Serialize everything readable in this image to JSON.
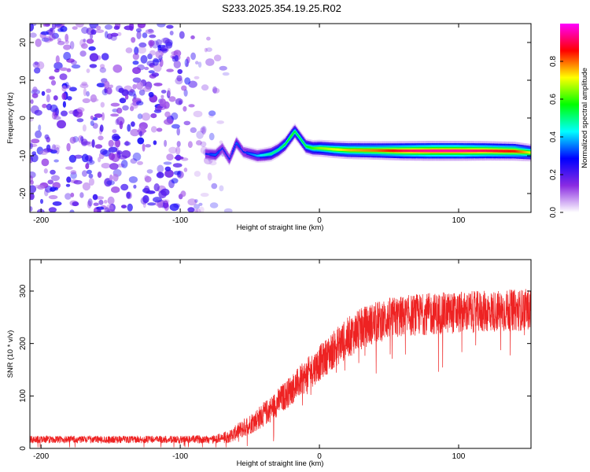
{
  "title": "S233.2025.354.19.25.R02",
  "chart_data": [
    {
      "type": "heatmap",
      "title": "S233.2025.354.19.25.R02",
      "xlabel": "Height of straight line (km)",
      "ylabel": "Frequency (Hz)",
      "xlim": [
        -208,
        152
      ],
      "ylim": [
        -25,
        25
      ],
      "x_ticks": [
        -200,
        -100,
        0,
        100
      ],
      "y_ticks": [
        -20,
        -10,
        0,
        10,
        20
      ],
      "colorbar": {
        "label": "Normalized spectral amplitude",
        "range": [
          0,
          1
        ],
        "ticks": [
          0.0,
          0.2,
          0.4,
          0.6,
          0.8
        ],
        "tick_labels": [
          "0.0",
          "0.2",
          "0.4",
          "0.6",
          "0.8"
        ],
        "colors": [
          "#ffffff",
          "#8a2be2",
          "#0000ff",
          "#00ffff",
          "#00ff00",
          "#ffff00",
          "#ff0000",
          "#ff00ff"
        ]
      },
      "noise_region": {
        "x_range": [
          -208,
          -60
        ],
        "frequency_range": [
          -25,
          25
        ],
        "amplitude": 0.2
      },
      "signal_ridge": {
        "x": [
          -82,
          -75,
          -70,
          -65,
          -60,
          -55,
          -50,
          -45,
          -40,
          -35,
          -30,
          -25,
          -20,
          -18,
          -15,
          -10,
          -5,
          0,
          10,
          20,
          40,
          60,
          80,
          100,
          120,
          140,
          152
        ],
        "frequency": [
          -9.5,
          -9.8,
          -8,
          -11,
          -6.5,
          -9,
          -9.5,
          -10,
          -9.8,
          -9.5,
          -8.5,
          -7,
          -4.5,
          -3.5,
          -5,
          -7.5,
          -8,
          -8,
          -8.3,
          -8.5,
          -8.6,
          -8.7,
          -8.7,
          -8.7,
          -8.7,
          -8.8,
          -9.2
        ],
        "amplitude": [
          0.3,
          0.35,
          0.3,
          0.3,
          0.35,
          0.3,
          0.35,
          0.4,
          0.45,
          0.5,
          0.5,
          0.55,
          0.6,
          0.55,
          0.55,
          0.55,
          0.6,
          0.65,
          0.7,
          0.75,
          0.8,
          0.9,
          0.95,
          0.95,
          0.9,
          0.85,
          0.7
        ]
      }
    },
    {
      "type": "line",
      "xlabel": "Height of straight line (km)",
      "ylabel": "SNR (10 * v/v)",
      "xlim": [
        -208,
        152
      ],
      "ylim": [
        0,
        360
      ],
      "x_ticks": [
        -200,
        -100,
        0,
        100
      ],
      "y_ticks": [
        0,
        100,
        200,
        300
      ],
      "color": "#ee2222",
      "series": [
        {
          "name": "SNR",
          "x": [
            -208,
            -150,
            -100,
            -75,
            -65,
            -55,
            -45,
            -35,
            -25,
            -15,
            -5,
            5,
            15,
            25,
            35,
            50,
            70,
            90,
            110,
            130,
            152
          ],
          "y": [
            17,
            17,
            17,
            18,
            22,
            38,
            55,
            75,
            100,
            125,
            150,
            175,
            200,
            220,
            235,
            248,
            255,
            258,
            260,
            262,
            265
          ],
          "noise_amplitude": [
            7,
            7,
            7,
            8,
            12,
            18,
            22,
            25,
            28,
            30,
            33,
            35,
            38,
            40,
            40,
            40,
            40,
            40,
            40,
            40,
            40
          ]
        }
      ]
    }
  ]
}
